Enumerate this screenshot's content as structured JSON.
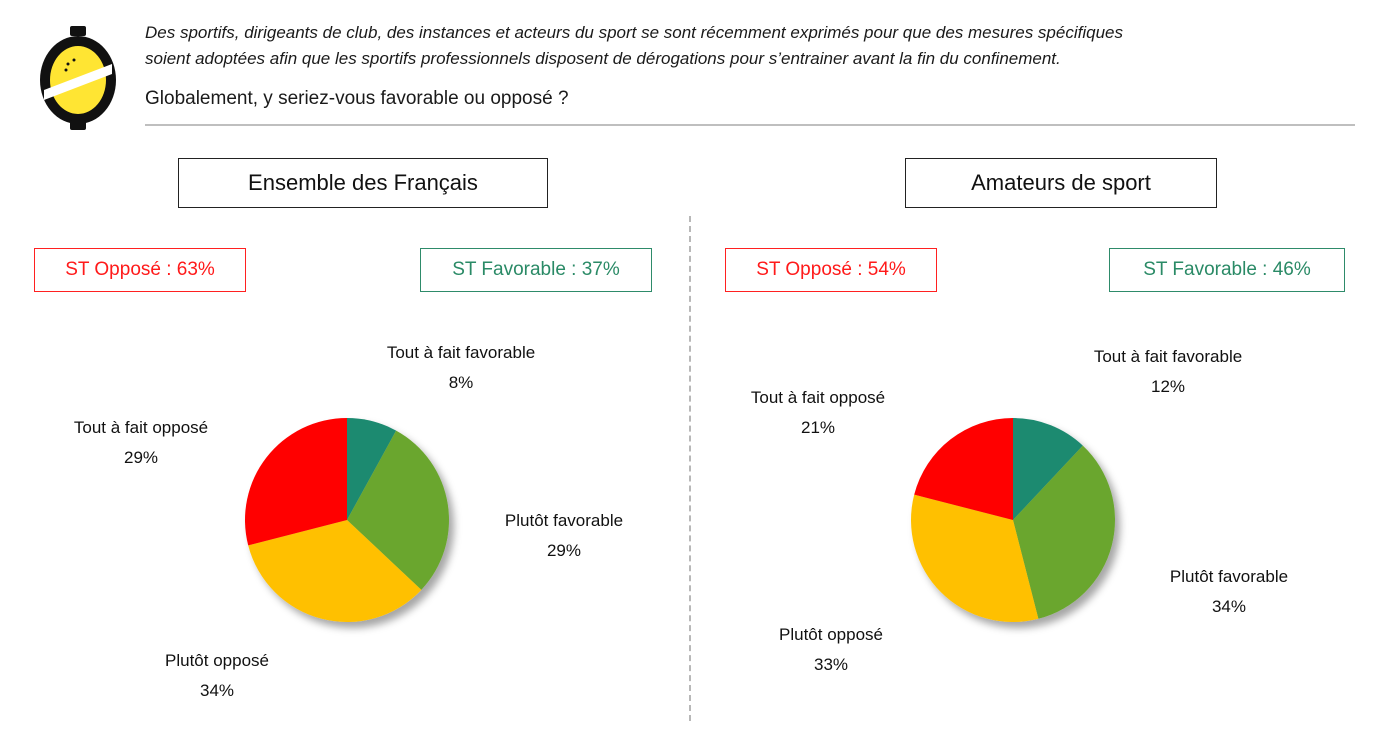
{
  "header": {
    "intro_line1": "Des sportifs, dirigeants de club, des instances et acteurs du sport se sont récemment exprimés pour que des mesures spécifiques",
    "intro_line2": "soient adoptées afin que les sportifs professionnels disposent de dérogations pour s’entrainer avant la fin du confinement.",
    "question": "Globalement, y seriez-vous favorable ou opposé ?"
  },
  "colors": {
    "tout_favorable": "#1f8a70",
    "plutot_favorable": "#6aa62e",
    "plutot_oppose": "#ffc000",
    "tout_oppose": "#ff0000"
  },
  "chart_data": [
    {
      "type": "pie",
      "title": "Ensemble des Français",
      "st_oppose": "ST Opposé : 63%",
      "st_favorable": "ST Favorable : 37%",
      "slices": [
        {
          "label": "Tout à fait favorable",
          "value": 8,
          "value_label": "8%"
        },
        {
          "label": "Plutôt favorable",
          "value": 29,
          "value_label": "29%"
        },
        {
          "label": "Plutôt opposé",
          "value": 34,
          "value_label": "34%"
        },
        {
          "label": "Tout à fait opposé",
          "value": 29,
          "value_label": "29%"
        }
      ]
    },
    {
      "type": "pie",
      "title": "Amateurs de sport",
      "st_oppose": "ST Opposé : 54%",
      "st_favorable": "ST Favorable : 46%",
      "slices": [
        {
          "label": "Tout à fait favorable",
          "value": 12,
          "value_label": "12%"
        },
        {
          "label": "Plutôt favorable",
          "value": 34,
          "value_label": "34%"
        },
        {
          "label": "Plutôt opposé",
          "value": 33,
          "value_label": "33%"
        },
        {
          "label": "Tout à fait opposé",
          "value": 21,
          "value_label": "21%"
        }
      ]
    }
  ]
}
